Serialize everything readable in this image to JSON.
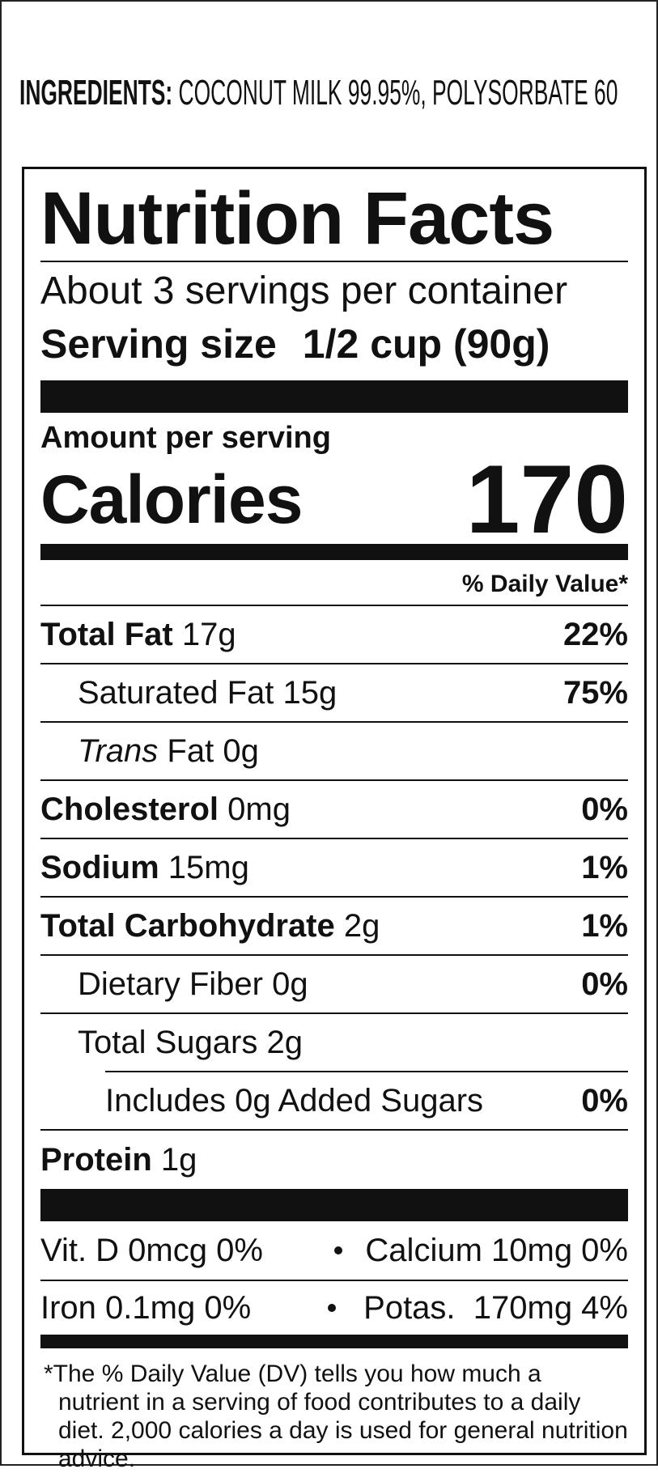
{
  "ingredients": {
    "label": "INGREDIENTS:",
    "text": "COCONUT MILK 99.95%, POLYSORBATE 60"
  },
  "nutrition": {
    "title": "Nutrition Facts",
    "servings": "About 3 servings per container",
    "serving_size_label": "Serving size",
    "serving_size": "1/2 cup (90g)",
    "amount_per_serving": "Amount per serving",
    "calories_label": "Calories",
    "calories": "170",
    "dv_header": "% Daily Value*",
    "rows": [
      {
        "name": "Total Fat",
        "amount": "17g",
        "dv": "22%"
      },
      {
        "name": "Saturated Fat",
        "amount": "15g",
        "dv": "75%"
      },
      {
        "name_italic": "Trans",
        "name": "Fat",
        "amount": "0g"
      },
      {
        "name": "Cholesterol",
        "amount": "0mg",
        "dv": "0%"
      },
      {
        "name": "Sodium",
        "amount": "15mg",
        "dv": "1%"
      },
      {
        "name": "Total Carbohydrate",
        "amount": "2g",
        "dv": "1%"
      },
      {
        "name": "Dietary Fiber",
        "amount": "0g",
        "dv": "0%"
      },
      {
        "name": "Total Sugars",
        "amount": "2g"
      },
      {
        "name": "Includes 0g Added Sugars",
        "dv": "0%"
      },
      {
        "name": "Protein",
        "amount": "1g"
      }
    ],
    "micros": [
      [
        "Vit. D 0mcg 0%",
        "Calcium 10mg 0%"
      ],
      [
        "Iron 0.1mg 0%",
        "Potas.  170mg 4%"
      ]
    ],
    "footnote": "*The % Daily Value (DV) tells you how much a nutrient in a serving of food contributes to a daily diet. 2,000 calories a day is used for general nutrition advice."
  }
}
